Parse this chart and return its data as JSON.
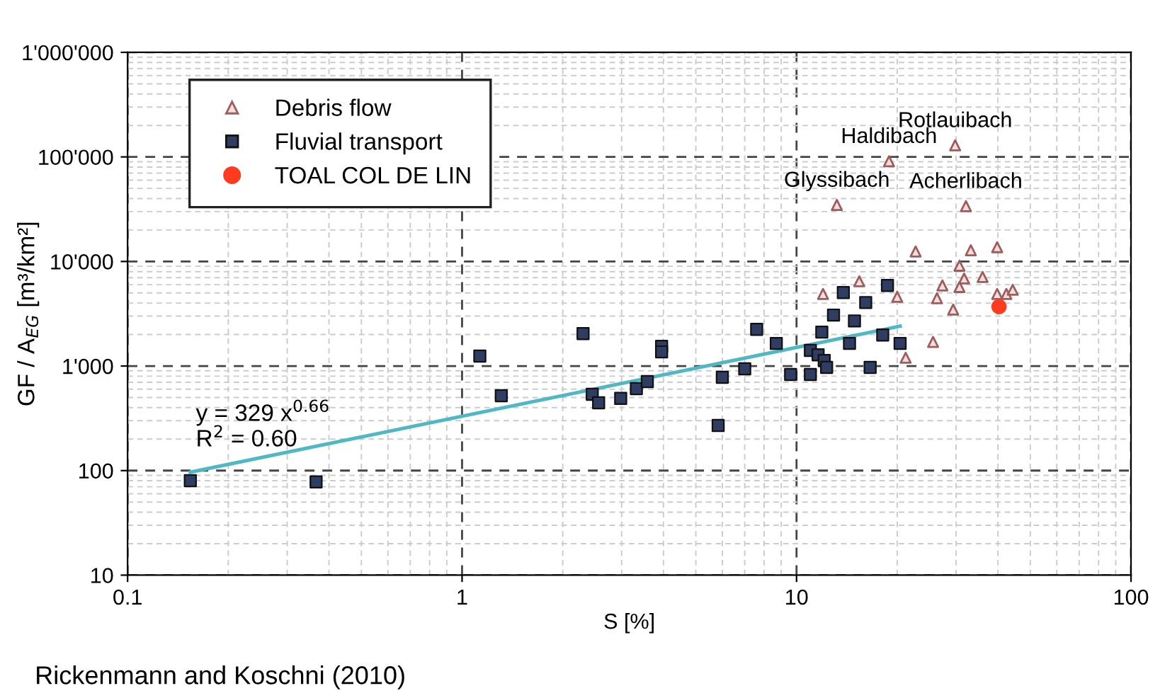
{
  "chart_data": {
    "type": "scatter",
    "xlabel": "S [%]",
    "ylabel": "GF / A$_{EG}$ [m³/km²]",
    "log": "xy",
    "xlim": [
      0.1,
      100
    ],
    "ylim": [
      10,
      1000000
    ],
    "xticks": [
      0.1,
      1,
      10,
      100
    ],
    "yticks": [
      10,
      100,
      {
        "value": 1000,
        "label": "1'000"
      },
      {
        "value": 10000,
        "label": "10'000"
      },
      {
        "value": 100000,
        "label": "100'000"
      },
      {
        "value": 1000000,
        "label": "1'000'000"
      }
    ],
    "grid": true,
    "legend": "top left",
    "series": [
      {
        "name": "Debris flow",
        "color": "#a05c5c",
        "marker": "triangle",
        "x": [
          12.0,
          29.8,
          18.9,
          13.2,
          32.1,
          22.7,
          33.2,
          39.8,
          30.7,
          31.7,
          36.0,
          27.3,
          30.7,
          26.3,
          29.4,
          39.8,
          42.4,
          44.3,
          15.4,
          20.0,
          25.6,
          21.2
        ],
        "values": [
          4890,
          129000,
          91000,
          34700,
          33800,
          12450,
          12800,
          13700,
          9100,
          6880,
          7100,
          5900,
          5700,
          4450,
          3470,
          4890,
          4890,
          5360,
          6460,
          4590,
          1700,
          1200
        ]
      },
      {
        "name": "Fluvial transport",
        "color": "#2f3d62",
        "marker": "square",
        "x": [
          0.154,
          0.366,
          1.13,
          1.31,
          2.3,
          2.45,
          2.56,
          2.98,
          3.32,
          3.58,
          3.95,
          3.95,
          5.83,
          6.0,
          7.0,
          7.6,
          8.7,
          9.6,
          11.0,
          11.0,
          11.6,
          12.1,
          12.3,
          11.9,
          13.8,
          18.7,
          16.1,
          12.9,
          14.9,
          14.4,
          18.1,
          20.4,
          16.6
        ],
        "values": [
          80,
          78,
          1245,
          520,
          2045,
          537,
          445,
          490,
          608,
          710,
          1545,
          1365,
          270,
          780,
          940,
          2245,
          1645,
          830,
          830,
          1410,
          1280,
          1130,
          970,
          2110,
          5040,
          5900,
          4050,
          3070,
          2700,
          1645,
          1980,
          1645,
          970
        ]
      },
      {
        "type": "line",
        "color": "#4fb8c4",
        "marker": "none",
        "x": [
          0.154,
          20.4
        ],
        "values": [
          96.6,
          2408
        ]
      },
      {
        "name": "TOAL COL DE LIN",
        "color": "#ff3b1f",
        "marker": "circle",
        "x": [
          40.3
        ],
        "values": [
          3700
        ]
      }
    ],
    "annotations": [
      {
        "text": "Rotlauibach",
        "x": 29.8,
        "y": 129000
      },
      {
        "text": "Haldibach",
        "x": 18.9,
        "y": 91000
      },
      {
        "text": "Glyssibach",
        "x": 13.2,
        "y": 34700
      },
      {
        "text": "Acherlibach",
        "x": 32.1,
        "y": 33800
      },
      "y = 329 x$^{0.66}$\nR$^{2}$ = 0.60",
      "Rickenmann and Koschni (2010)"
    ]
  }
}
